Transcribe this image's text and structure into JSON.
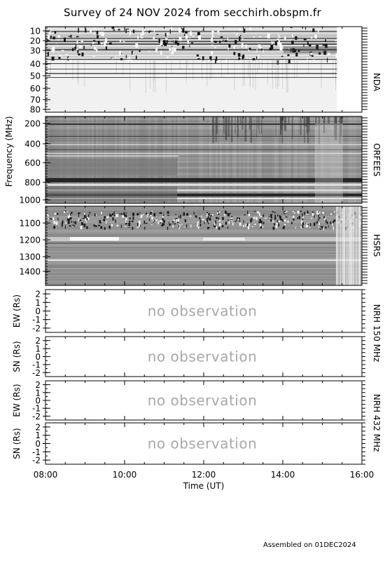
{
  "title": "Survey of 24 NOV 2024 from secchirh.obspm.fr",
  "footer": "Assembled on 01DEC2024",
  "chart_data": {
    "type": "heatmap",
    "x_axis": {
      "label": "Time (UT)",
      "range": [
        "08:00",
        "16:00"
      ],
      "ticks": [
        "08:00",
        "10:00",
        "12:00",
        "14:00",
        "16:00"
      ]
    },
    "y_axis_shared_label": "Frequency (MHz)",
    "data_end_time": "15:22",
    "panels": [
      {
        "id": "nda",
        "instrument": "NDA",
        "kind": "spectrogram",
        "yrange": [
          10,
          80
        ],
        "yticks": [
          "10",
          "20",
          "30",
          "40",
          "50",
          "60",
          "70",
          "80"
        ]
      },
      {
        "id": "orfees",
        "instrument": "ORFEES",
        "kind": "spectrogram",
        "yrange": [
          150,
          1000
        ],
        "yticks": [
          "200",
          "400",
          "600",
          "800",
          "1000"
        ]
      },
      {
        "id": "hsrs",
        "instrument": "HSRS",
        "kind": "spectrogram",
        "yrange": [
          1030,
          1500
        ],
        "yticks": [
          "1100",
          "1200",
          "1300",
          "1400"
        ]
      },
      {
        "id": "nrh150ew",
        "ylabel": "EW (Rs)",
        "kind": "empty",
        "yrange": [
          -2.5,
          2.5
        ],
        "yticks": [
          "2",
          "1",
          "0",
          "-1",
          "-2"
        ],
        "message": "no observation"
      },
      {
        "id": "nrh150sn",
        "ylabel": "SN (Rs)",
        "kind": "empty",
        "yrange": [
          -2.5,
          2.5
        ],
        "yticks": [
          "2",
          "1",
          "0",
          "-1",
          "-2"
        ],
        "message": "no observation"
      },
      {
        "id": "nrh432ew",
        "ylabel": "EW (Rs)",
        "kind": "empty",
        "yrange": [
          -2.5,
          2.5
        ],
        "yticks": [
          "2",
          "1",
          "0",
          "-1",
          "-2"
        ],
        "message": "no observation"
      },
      {
        "id": "nrh432sn",
        "ylabel": "SN (Rs)",
        "kind": "empty",
        "yrange": [
          -2.5,
          2.5
        ],
        "yticks": [
          "2",
          "1",
          "0",
          "-1",
          "-2"
        ],
        "message": "no observation"
      }
    ],
    "right_labels": [
      "NDA",
      "ORFEES",
      "HSRS",
      "NRH 150 MHz",
      "NRH 432 MHz"
    ]
  }
}
